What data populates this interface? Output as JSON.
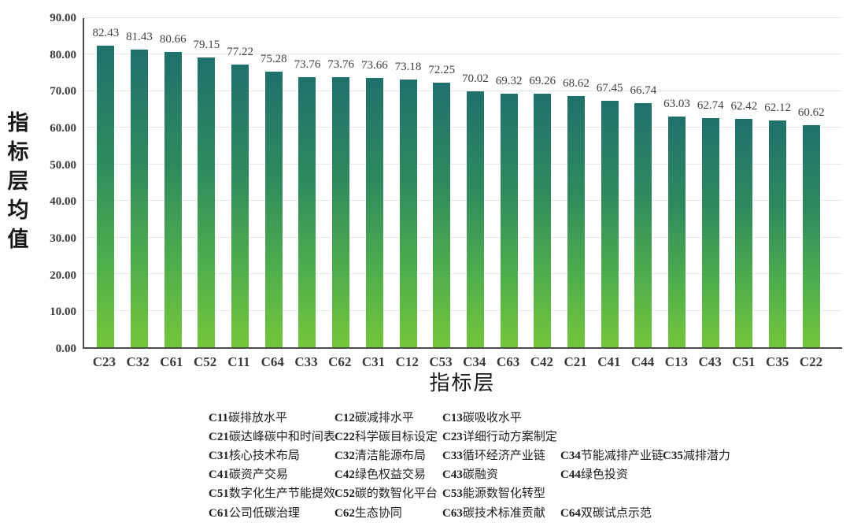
{
  "chart_data": {
    "type": "bar",
    "title": "",
    "xlabel": "指标层",
    "ylabel": "指标层均值",
    "ylim": [
      0,
      90
    ],
    "grid": true,
    "y_tick_step": 10,
    "y_tick_labels": [
      "0.00",
      "10.00",
      "20.00",
      "30.00",
      "40.00",
      "50.00",
      "60.00",
      "70.00",
      "80.00",
      "90.00"
    ],
    "categories": [
      "C23",
      "C32",
      "C61",
      "C52",
      "C11",
      "C64",
      "C33",
      "C62",
      "C31",
      "C12",
      "C53",
      "C34",
      "C63",
      "C42",
      "C21",
      "C41",
      "C44",
      "C13",
      "C43",
      "C51",
      "C35",
      "C22"
    ],
    "values": [
      82.43,
      81.43,
      80.66,
      79.15,
      77.22,
      75.28,
      73.76,
      73.76,
      73.66,
      73.18,
      72.25,
      70.02,
      69.32,
      69.26,
      68.62,
      67.45,
      66.74,
      63.03,
      62.74,
      62.42,
      62.12,
      60.62
    ]
  },
  "colors": {
    "bar_gradient_top": "#20706c",
    "bar_gradient_mid": "#3f9a52",
    "bar_gradient_bottom": "#74c63a",
    "gridline": "#e8e8e8",
    "axis": "#4d4d4d",
    "text": "#3a3a3a"
  },
  "legend": {
    "rows": [
      [
        {
          "code": "C11",
          "label": "碳排放水平"
        },
        {
          "code": "C12",
          "label": "碳减排水平"
        },
        {
          "code": "C13",
          "label": "碳吸收水平"
        }
      ],
      [
        {
          "code": "C21",
          "label": "碳达峰碳中和时间表"
        },
        {
          "code": "C22",
          "label": "科学碳目标设定"
        },
        {
          "code": "C23",
          "label": "详细行动方案制定"
        }
      ],
      [
        {
          "code": "C31",
          "label": "核心技术布局"
        },
        {
          "code": "C32",
          "label": "清洁能源布局"
        },
        {
          "code": "C33",
          "label": "循环经济产业链"
        },
        {
          "code": "C34",
          "label": "节能减排产业链"
        },
        {
          "code": "C35",
          "label": "减排潜力"
        }
      ],
      [
        {
          "code": "C41",
          "label": "碳资产交易"
        },
        {
          "code": "C42",
          "label": "绿色权益交易"
        },
        {
          "code": "C43",
          "label": "碳融资"
        },
        {
          "code": "C44",
          "label": "绿色投资"
        }
      ],
      [
        {
          "code": "C51",
          "label": "数字化生产节能提效"
        },
        {
          "code": "C52",
          "label": "碳的数智化平台"
        },
        {
          "code": "C53",
          "label": "能源数智化转型"
        }
      ],
      [
        {
          "code": "C61",
          "label": "公司低碳治理"
        },
        {
          "code": "C62",
          "label": "生态协同"
        },
        {
          "code": "C63",
          "label": "碳技术标准贡献"
        },
        {
          "code": "C64",
          "label": "双碳试点示范"
        }
      ]
    ]
  }
}
